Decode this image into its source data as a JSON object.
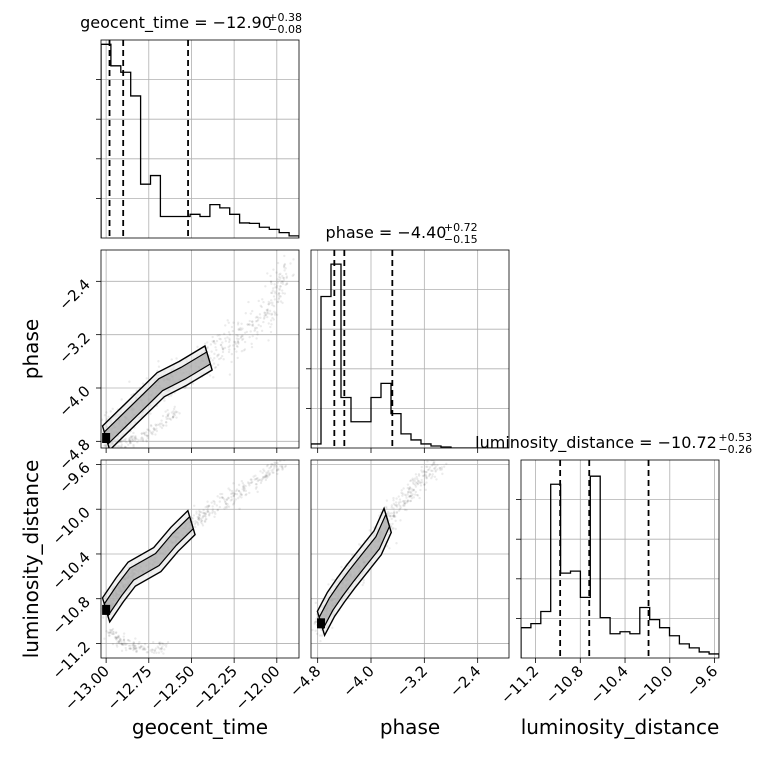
{
  "chart_data": {
    "type": "corner",
    "parameters": [
      {
        "name": "geocent_time",
        "range": [
          -13.03,
          -11.87
        ],
        "ticks": [
          -13.0,
          -12.75,
          -12.5,
          -12.25,
          -12.0
        ],
        "tick_labels": [
          "−13.00",
          "−12.75",
          "−12.50",
          "−12.25",
          "−12.00"
        ],
        "median": -12.9,
        "plus": 0.38,
        "minus": 0.08,
        "title_base": "geocent_time = −12.90",
        "title_plus": "+0.38",
        "title_minus": "−0.08",
        "quantiles": [
          -12.98,
          -12.9,
          -12.52
        ],
        "hist_edges_start": -13.03,
        "hist_bin_width": 0.058,
        "hist_counts": [
          0.9,
          0.8,
          0.77,
          0.66,
          0.25,
          0.29,
          0.1,
          0.1,
          0.1,
          0.11,
          0.1,
          0.155,
          0.14,
          0.11,
          0.07,
          0.068,
          0.05,
          0.04,
          0.025,
          0.01
        ],
        "hist_max": 0.92
      },
      {
        "name": "phase",
        "range": [
          -4.9,
          -1.93
        ],
        "ticks": [
          -4.8,
          -4.0,
          -3.2,
          -2.4
        ],
        "tick_labels": [
          "−4.8",
          "−4.0",
          "−3.2",
          "−2.4"
        ],
        "median": -4.4,
        "plus": 0.72,
        "minus": 0.15,
        "title_base": "phase = −4.40",
        "title_plus": "+0.72",
        "title_minus": "−0.15",
        "quantiles": [
          -4.55,
          -4.4,
          -3.68
        ],
        "hist_edges_start": -4.9,
        "hist_bin_width": 0.15,
        "hist_counts": [
          0.02,
          0.75,
          0.91,
          0.25,
          0.13,
          0.13,
          0.25,
          0.32,
          0.17,
          0.07,
          0.04,
          0.02,
          0.01,
          0.005,
          0,
          0,
          0,
          0,
          0,
          0
        ],
        "hist_max": 0.98
      },
      {
        "name": "luminosity_distance",
        "range": [
          -11.33,
          -9.56
        ],
        "ticks": [
          -11.2,
          -10.8,
          -10.4,
          -10.0,
          -9.6
        ],
        "tick_labels": [
          "−11.2",
          "−10.8",
          "−10.4",
          "−10.0",
          "−9.6"
        ],
        "median": -10.72,
        "plus": 0.53,
        "minus": 0.26,
        "title_base": "luminosity_distance = −10.72",
        "title_plus": "+0.53",
        "title_minus": "−0.26",
        "quantiles": [
          -10.98,
          -10.72,
          -10.19
        ],
        "hist_edges_start": -11.33,
        "hist_bin_width": 0.0885,
        "hist_counts": [
          0.15,
          0.17,
          0.23,
          0.86,
          0.42,
          0.43,
          0.3,
          0.9,
          0.2,
          0.12,
          0.13,
          0.12,
          0.25,
          0.19,
          0.15,
          0.11,
          0.07,
          0.05,
          0.03,
          0.02
        ],
        "hist_max": 0.98
      }
    ],
    "axis_labels": {
      "x": [
        "geocent_time",
        "phase",
        "luminosity_distance"
      ],
      "y": [
        "phase",
        "luminosity_distance"
      ]
    },
    "pair_trends": [
      {
        "x_param": "geocent_time",
        "y_param": "phase",
        "path": [
          [
            -13.0,
            -4.75
          ],
          [
            -12.92,
            -4.55
          ],
          [
            -12.8,
            -4.25
          ],
          [
            -12.68,
            -3.95
          ],
          [
            -12.55,
            -3.78
          ],
          [
            -12.4,
            -3.55
          ],
          [
            -12.28,
            -3.35
          ],
          [
            -12.15,
            -3.1
          ],
          [
            -12.02,
            -2.7
          ],
          [
            -11.95,
            -2.2
          ]
        ],
        "spread": 0.13,
        "branch": [
          [
            -12.98,
            -4.85
          ],
          [
            -12.88,
            -4.8
          ],
          [
            -12.78,
            -4.72
          ],
          [
            -12.68,
            -4.55
          ],
          [
            -12.58,
            -4.35
          ]
        ]
      },
      {
        "x_param": "geocent_time",
        "y_param": "luminosity_distance",
        "path": [
          [
            -13.0,
            -10.9
          ],
          [
            -12.92,
            -10.72
          ],
          [
            -12.85,
            -10.58
          ],
          [
            -12.7,
            -10.45
          ],
          [
            -12.6,
            -10.27
          ],
          [
            -12.5,
            -10.12
          ],
          [
            -12.4,
            -10.02
          ],
          [
            -12.25,
            -9.88
          ],
          [
            -12.1,
            -9.72
          ],
          [
            -11.95,
            -9.58
          ]
        ],
        "spread": 0.04,
        "branch": [
          [
            -12.98,
            -11.1
          ],
          [
            -12.9,
            -11.2
          ],
          [
            -12.78,
            -11.25
          ],
          [
            -12.65,
            -11.23
          ]
        ]
      },
      {
        "x_param": "phase",
        "y_param": "luminosity_distance",
        "path": [
          [
            -4.75,
            -11.02
          ],
          [
            -4.6,
            -10.85
          ],
          [
            -4.45,
            -10.72
          ],
          [
            -4.3,
            -10.6
          ],
          [
            -4.1,
            -10.45
          ],
          [
            -3.9,
            -10.3
          ],
          [
            -3.75,
            -10.1
          ],
          [
            -3.55,
            -9.95
          ],
          [
            -3.35,
            -9.8
          ],
          [
            -3.15,
            -9.66
          ],
          [
            -2.95,
            -9.58
          ]
        ],
        "spread": 0.06,
        "branch": []
      }
    ],
    "grid": true
  }
}
